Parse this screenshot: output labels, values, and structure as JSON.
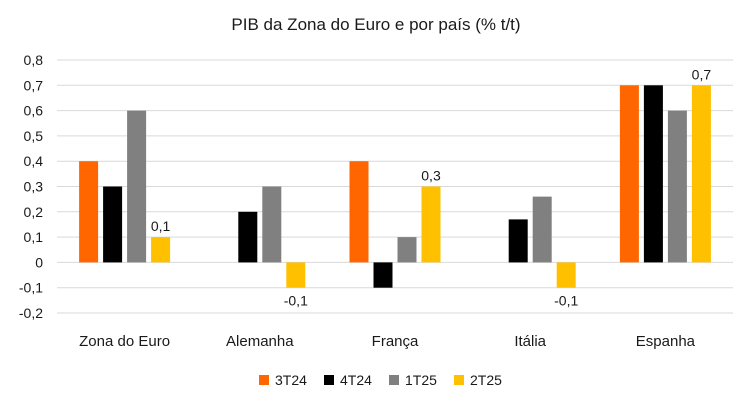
{
  "chart_data": {
    "type": "bar",
    "title": "PIB da Zona do Euro e por país (% t/t)",
    "xlabel": "",
    "ylabel": "",
    "categories": [
      "Zona do Euro",
      "Alemanha",
      "França",
      "Itália",
      "Espanha"
    ],
    "ylim": [
      -0.2,
      0.8
    ],
    "yticks": [
      -0.2,
      -0.1,
      0,
      0.1,
      0.2,
      0.3,
      0.4,
      0.5,
      0.6,
      0.7,
      0.8
    ],
    "ytick_labels": [
      "-0,2",
      "-0,1",
      "0",
      "0,1",
      "0,2",
      "0,3",
      "0,4",
      "0,5",
      "0,6",
      "0,7",
      "0,8"
    ],
    "grid": true,
    "legend_position": "bottom",
    "series": [
      {
        "name": "3T24",
        "color": "#ff6600",
        "values": [
          0.4,
          0.0,
          0.4,
          0.0,
          0.7
        ]
      },
      {
        "name": "4T24",
        "color": "#000000",
        "values": [
          0.3,
          0.2,
          -0.1,
          0.17,
          0.7
        ]
      },
      {
        "name": "1T25",
        "color": "#808080",
        "values": [
          0.6,
          0.3,
          0.1,
          0.26,
          0.6
        ]
      },
      {
        "name": "2T25",
        "color": "#ffc000",
        "values": [
          0.1,
          -0.1,
          0.3,
          -0.1,
          0.7
        ]
      }
    ],
    "data_labels": [
      {
        "series": 3,
        "category": 0,
        "text": "0,1"
      },
      {
        "series": 3,
        "category": 1,
        "text": "-0,1"
      },
      {
        "series": 3,
        "category": 2,
        "text": "0,3"
      },
      {
        "series": 3,
        "category": 3,
        "text": "-0,1"
      },
      {
        "series": 3,
        "category": 4,
        "text": "0,7"
      }
    ]
  }
}
